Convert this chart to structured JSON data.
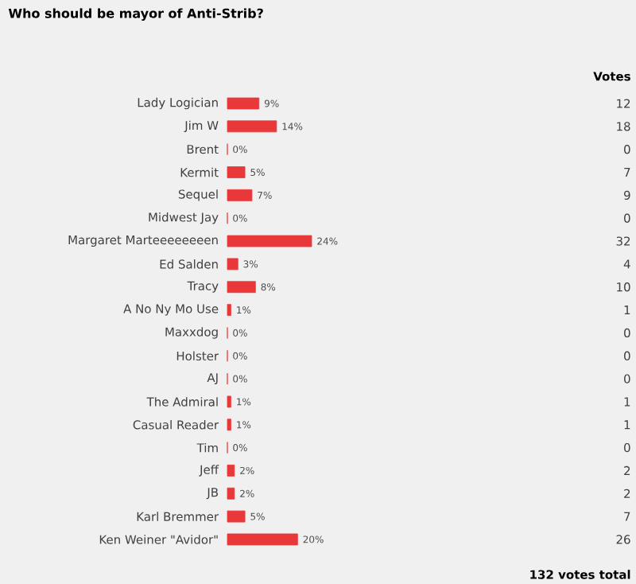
{
  "chart_data": {
    "type": "bar",
    "orientation": "horizontal",
    "title": "Who should be mayor of Anti-Strib?",
    "categories": [
      "Lady Logician",
      "Jim W",
      "Brent",
      "Kermit",
      "Sequel",
      "Midwest Jay",
      "Margaret Marteeeeeeeen",
      "Ed Salden",
      "Tracy",
      "A No Ny Mo Use",
      "Maxxdog",
      "Holster",
      "AJ",
      "The Admiral",
      "Casual Reader",
      "Tim",
      "Jeff",
      "JB",
      "Karl Bremmer",
      "Ken Weiner \"Avidor\""
    ],
    "values": [
      9,
      14,
      0,
      5,
      7,
      0,
      24,
      3,
      8,
      1,
      0,
      0,
      0,
      1,
      1,
      0,
      2,
      2,
      5,
      20
    ],
    "value_labels": [
      "9%",
      "14%",
      "0%",
      "5%",
      "7%",
      "0%",
      "24%",
      "3%",
      "8%",
      "1%",
      "0%",
      "0%",
      "0%",
      "1%",
      "1%",
      "0%",
      "2%",
      "2%",
      "5%",
      "20%"
    ],
    "color": "#e8383a",
    "annotations": [
      "Votes",
      "12",
      "18",
      "0",
      "7",
      "9",
      "0",
      "32",
      "4",
      "10",
      "1",
      "0",
      "0",
      "0",
      "1",
      "1",
      "0",
      "2",
      "2",
      "7",
      "26",
      "132 votes total"
    ]
  }
}
